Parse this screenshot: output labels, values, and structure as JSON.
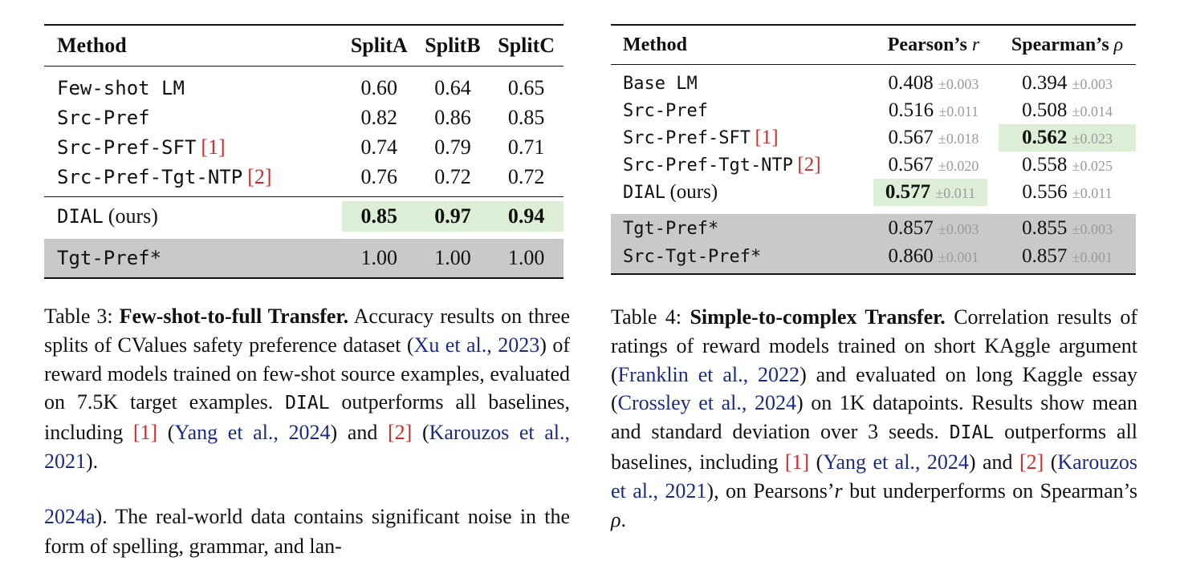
{
  "table3": {
    "headers": [
      "Method",
      "SplitA",
      "SplitB",
      "SplitC"
    ],
    "rows": [
      {
        "method": "Few-shot LM",
        "ref": "",
        "a": "0.60",
        "b": "0.64",
        "c": "0.65"
      },
      {
        "method": "Src-Pref",
        "ref": "",
        "a": "0.82",
        "b": "0.86",
        "c": "0.85"
      },
      {
        "method": "Src-Pref-SFT",
        "ref": "[1]",
        "a": "0.74",
        "b": "0.79",
        "c": "0.71"
      },
      {
        "method": "Src-Pref-Tgt-NTP",
        "ref": "[2]",
        "a": "0.76",
        "b": "0.72",
        "c": "0.72"
      }
    ],
    "ours": {
      "method": "DIAL",
      "suffix": "(ours)",
      "a": "0.85",
      "b": "0.97",
      "c": "0.94"
    },
    "oracle": {
      "method": "Tgt-Pref*",
      "a": "1.00",
      "b": "1.00",
      "c": "1.00"
    }
  },
  "table4": {
    "headers": {
      "method": "Method",
      "pearson": "Pearson’s",
      "pearson_sym": "r",
      "spearman": "Spearman’s",
      "spearman_sym": "ρ"
    },
    "rows": [
      {
        "method": "Base LM",
        "suffix": "",
        "ref": "",
        "p": "0.408",
        "ps": "±0.003",
        "s": "0.394",
        "ss": "±0.003"
      },
      {
        "method": "Src-Pref",
        "suffix": "",
        "ref": "",
        "p": "0.516",
        "ps": "±0.011",
        "s": "0.508",
        "ss": "±0.014"
      },
      {
        "method": "Src-Pref-SFT",
        "suffix": "",
        "ref": "[1]",
        "p": "0.567",
        "ps": "±0.018",
        "s": "0.562",
        "ss": "±0.023"
      },
      {
        "method": "Src-Pref-Tgt-NTP",
        "suffix": "",
        "ref": "[2]",
        "p": "0.567",
        "ps": "±0.020",
        "s": "0.558",
        "ss": "±0.025"
      },
      {
        "method": "DIAL",
        "suffix": "(ours)",
        "ref": "",
        "p": "0.577",
        "ps": "±0.011",
        "s": "0.556",
        "ss": "±0.011"
      }
    ],
    "oracle": [
      {
        "method": "Tgt-Pref*",
        "p": "0.857",
        "ps": "±0.003",
        "s": "0.855",
        "ss": "±0.003"
      },
      {
        "method": "Src-Tgt-Pref*",
        "p": "0.860",
        "ps": "±0.001",
        "s": "0.857",
        "ss": "±0.001"
      }
    ]
  },
  "caption3": {
    "label": "Table 3:",
    "title": "Few-shot-to-full Transfer.",
    "t1": "Accuracy results on three splits of CValues safety preference dataset (",
    "c1": "Xu et al., 2023",
    "t2": ") of reward models trained on few-shot source examples, evaluated on 7.5K target examples.",
    "dial": "DIAL",
    "t3": "outperforms all baselines, including",
    "r1": "[1]",
    "c2": "Yang et al., 2024",
    "t4": "and",
    "r2": "[2]",
    "c3": "Karouzos et al., 2021"
  },
  "caption4": {
    "label": "Table 4:",
    "title": "Simple-to-complex Transfer.",
    "t1": "Correlation results of ratings of reward models trained on short KAggle argument (",
    "c1": "Franklin et al., 2022",
    "t2": ") and evaluated on long Kaggle essay (",
    "c2": "Crossley et al., 2024",
    "t3": ") on 1K datapoints. Results show mean and standard deviation over 3 seeds.",
    "dial": "DIAL",
    "t4": "outperforms all baselines, including",
    "r1": "[1]",
    "c3": "Yang et al., 2024",
    "t5": "and",
    "r2": "[2]",
    "c4": "Karouzos et al., 2021",
    "t6": "on Pearsons’",
    "sym1": "r",
    "t7": "but underperforms on Spearman’s",
    "sym2": "ρ"
  },
  "body": {
    "cite_tail": "2024a",
    "text": "). The real-world data contains significant noise in the form of spelling, grammar, and lan-"
  }
}
